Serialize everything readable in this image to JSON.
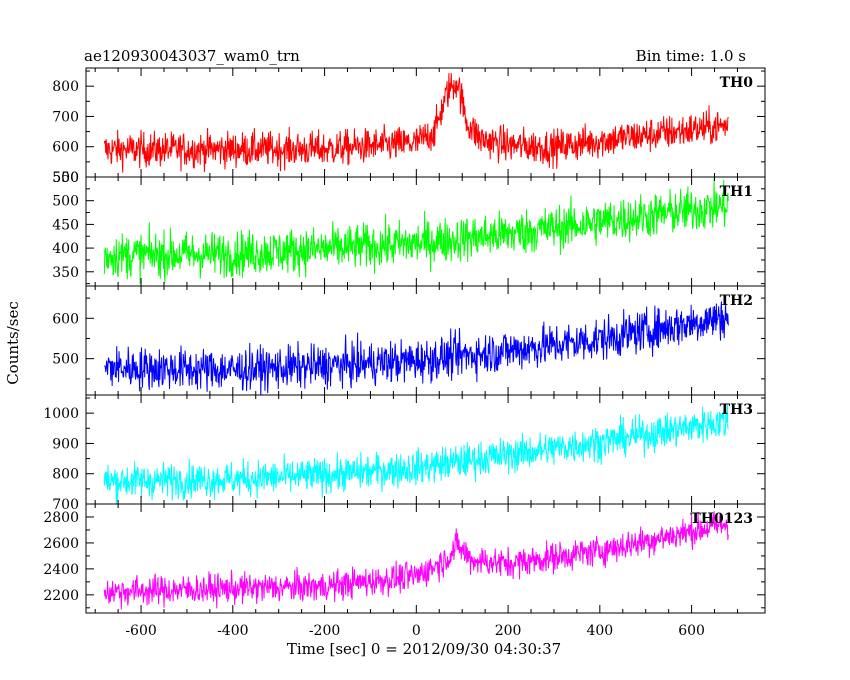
{
  "header": {
    "left_title": "ae120930043037_wam0_trn",
    "right_title": "Bin time: 1.0 s"
  },
  "chart_data": {
    "type": "line",
    "xlabel": "Time [sec] 0 = 2012/09/30 04:30:37",
    "ylabel": "Counts/sec",
    "xlim": [
      -720,
      760
    ],
    "x_range": [
      -680,
      680
    ],
    "x_ticks": [
      -600,
      -400,
      -200,
      0,
      200,
      400,
      600
    ],
    "bin_time": 1.0,
    "panels": [
      {
        "name": "TH0",
        "color": "#ff0000",
        "ylim": [
          500,
          860
        ],
        "y_ticks": [
          500,
          600,
          700,
          800
        ],
        "trend": [
          [
            -680,
            590
          ],
          [
            -200,
            592
          ],
          [
            0,
            612
          ],
          [
            40,
            650
          ],
          [
            70,
            790
          ],
          [
            90,
            815
          ],
          [
            110,
            680
          ],
          [
            140,
            625
          ],
          [
            200,
            605
          ],
          [
            300,
            598
          ],
          [
            400,
            620
          ],
          [
            680,
            670
          ]
        ],
        "noise": 55
      },
      {
        "name": "TH1",
        "color": "#00ff00",
        "ylim": [
          320,
          550
        ],
        "y_ticks": [
          350,
          400,
          450,
          500,
          550
        ],
        "trend": [
          [
            -680,
            385
          ],
          [
            -400,
            388
          ],
          [
            -200,
            398
          ],
          [
            0,
            410
          ],
          [
            200,
            430
          ],
          [
            400,
            455
          ],
          [
            680,
            490
          ]
        ],
        "noise": 45
      },
      {
        "name": "TH2",
        "color": "#0000ff",
        "ylim": [
          410,
          680
        ],
        "y_ticks": [
          500,
          600
        ],
        "trend": [
          [
            -680,
            478
          ],
          [
            -400,
            472
          ],
          [
            -200,
            482
          ],
          [
            0,
            495
          ],
          [
            200,
            520
          ],
          [
            400,
            548
          ],
          [
            680,
            605
          ]
        ],
        "noise": 50
      },
      {
        "name": "TH3",
        "color": "#00ffff",
        "ylim": [
          700,
          1060
        ],
        "y_ticks": [
          700,
          800,
          900,
          1000
        ],
        "trend": [
          [
            -680,
            775
          ],
          [
            -400,
            782
          ],
          [
            -200,
            795
          ],
          [
            0,
            820
          ],
          [
            200,
            862
          ],
          [
            400,
            905
          ],
          [
            680,
            975
          ]
        ],
        "noise": 55
      },
      {
        "name": "TH0123",
        "color": "#ff00ff",
        "ylim": [
          2060,
          2900
        ],
        "y_ticks": [
          2200,
          2400,
          2600,
          2800
        ],
        "trend": [
          [
            -680,
            2225
          ],
          [
            -200,
            2265
          ],
          [
            0,
            2345
          ],
          [
            60,
            2460
          ],
          [
            90,
            2580
          ],
          [
            120,
            2470
          ],
          [
            200,
            2440
          ],
          [
            400,
            2540
          ],
          [
            680,
            2750
          ]
        ],
        "noise": 110
      }
    ]
  }
}
